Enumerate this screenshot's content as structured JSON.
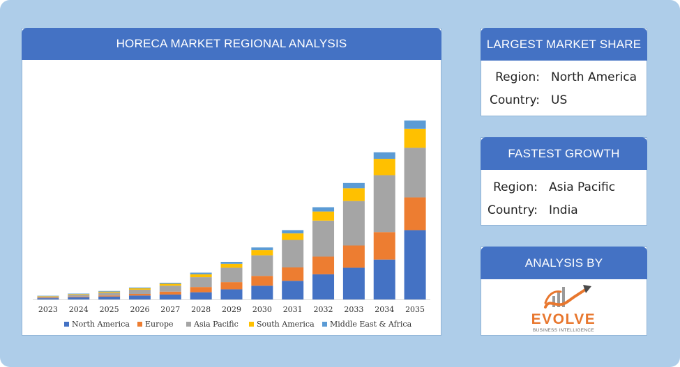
{
  "chart_panel": {
    "title": "HORECA MARKET REGIONAL ANALYSIS"
  },
  "largest_share": {
    "title": "LARGEST MARKET SHARE",
    "region_label": "Region:",
    "region_value": "North America",
    "country_label": "Country:",
    "country_value": "US"
  },
  "fastest_growth": {
    "title": "FASTEST GROWTH",
    "region_label": "Region:",
    "region_value": "Asia Pacific",
    "country_label": "Country:",
    "country_value": "India"
  },
  "analysis_by": {
    "title": "ANALYSIS BY",
    "logo_text": "EVOLVE",
    "logo_subtext": "BUSINESS INTELLIGENCE"
  },
  "colors": {
    "north_america": "#4472c4",
    "europe": "#ed7d31",
    "asia_pacific": "#a5a5a5",
    "south_america": "#ffc000",
    "mea": "#5b9bd5",
    "header": "#4472c4",
    "background": "#aecde9"
  },
  "chart_data": {
    "type": "bar",
    "stacked": true,
    "categories": [
      "2023",
      "2024",
      "2025",
      "2026",
      "2027",
      "2028",
      "2029",
      "2030",
      "2031",
      "2032",
      "2033",
      "2034",
      "2035"
    ],
    "series": [
      {
        "name": "North America",
        "color": "#4472c4",
        "values": [
          2.0,
          3.5,
          4.5,
          6.0,
          7.5,
          11.0,
          15.5,
          21.0,
          28.5,
          38.5,
          48.5,
          61.0,
          106.0
        ]
      },
      {
        "name": "Europe",
        "color": "#ed7d31",
        "values": [
          0.7,
          1.0,
          1.5,
          2.5,
          4.5,
          8.0,
          11.0,
          15.0,
          20.5,
          27.0,
          34.0,
          42.0,
          50.0
        ]
      },
      {
        "name": "Asia Pacific",
        "color": "#a5a5a5",
        "values": [
          1.8,
          2.8,
          4.5,
          6.5,
          9.0,
          15.0,
          22.0,
          31.5,
          42.0,
          55.0,
          68.0,
          87.0,
          76.0
        ]
      },
      {
        "name": "South America",
        "color": "#ffc000",
        "values": [
          0.7,
          1.0,
          1.5,
          2.0,
          3.0,
          4.5,
          6.0,
          8.0,
          10.0,
          14.0,
          19.5,
          25.0,
          29.0
        ]
      },
      {
        "name": "Middle East & Africa",
        "color": "#5b9bd5",
        "values": [
          0.5,
          0.7,
          1.0,
          1.2,
          1.5,
          2.5,
          3.0,
          4.0,
          5.0,
          6.5,
          8.0,
          10.0,
          12.5
        ]
      }
    ],
    "legend": "bottom",
    "grid": false,
    "y_axis_visible": false,
    "ylim": [
      0,
      280
    ]
  }
}
